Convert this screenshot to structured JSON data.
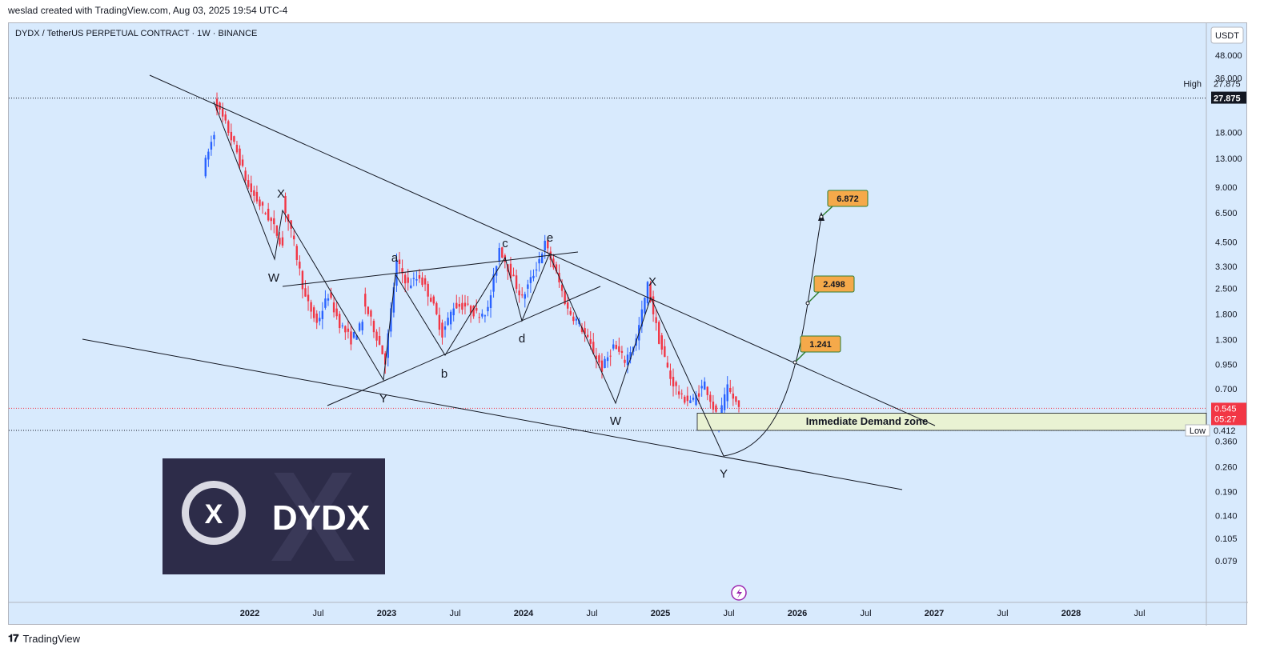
{
  "header": {
    "created_by": "weslad created with TradingView.com, Aug 03, 2025 19:54 UTC-4"
  },
  "footer": {
    "brand": "TradingView"
  },
  "chart_data": {
    "type": "candlestick",
    "title": "DYDX / TetherUS PERPETUAL CONTRACT · 1W · BINANCE",
    "currency": "USDT",
    "log_scale": true,
    "y_ticks": [
      "48.000",
      "36.000",
      "27.875",
      "18.000",
      "13.000",
      "9.000",
      "6.500",
      "4.500",
      "3.300",
      "2.500",
      "1.800",
      "1.300",
      "0.950",
      "0.700",
      "0.412",
      "0.360",
      "0.260",
      "0.190",
      "0.140",
      "0.105",
      "0.079"
    ],
    "x_ticks": [
      "2022",
      "Jul",
      "2023",
      "Jul",
      "2024",
      "Jul",
      "2025",
      "Jul",
      "2026",
      "Jul",
      "2027",
      "Jul",
      "2028",
      "Jul"
    ],
    "high": {
      "label": "High",
      "value": "27.875"
    },
    "low": {
      "label": "Low",
      "value": "0.412"
    },
    "last_price": {
      "value": "0.545",
      "countdown": "05:27"
    },
    "colors": {
      "up": "#2962ff",
      "down": "#f23645",
      "background": "#d8eafd",
      "zone": "#e9f2d3",
      "target_box": "#f5a94a",
      "target_border": "#2e7d32"
    },
    "wave_labels": [
      "X",
      "W",
      "a",
      "b",
      "c",
      "d",
      "e",
      "Y",
      "W",
      "X",
      "Y"
    ],
    "targets": [
      "6.872",
      "2.498",
      "1.241"
    ],
    "zone_label": "Immediate Demand zone",
    "logo_text": "DYDX",
    "logo_mark": "X",
    "series_path": [
      {
        "t": "2021-09",
        "v": 11.0
      },
      {
        "t": "2021-10",
        "v": 18.0
      },
      {
        "t": "2021-10",
        "v": 27.0
      },
      {
        "t": "2021-11",
        "v": 20.0
      },
      {
        "t": "2021-12",
        "v": 14.0
      },
      {
        "t": "2022-01",
        "v": 9.0
      },
      {
        "t": "2022-02",
        "v": 7.2
      },
      {
        "t": "2022-03",
        "v": 5.8
      },
      {
        "t": "2022-04",
        "v": 4.3
      },
      {
        "t": "2022-04",
        "v": 7.7
      },
      {
        "t": "2022-05",
        "v": 4.4
      },
      {
        "t": "2022-06",
        "v": 2.2
      },
      {
        "t": "2022-07",
        "v": 1.6
      },
      {
        "t": "2022-08",
        "v": 2.3
      },
      {
        "t": "2022-09",
        "v": 1.6
      },
      {
        "t": "2022-10",
        "v": 1.3
      },
      {
        "t": "2022-11",
        "v": 1.6
      },
      {
        "t": "2022-11",
        "v": 2.2
      },
      {
        "t": "2022-12",
        "v": 1.5
      },
      {
        "t": "2023-01",
        "v": 1.0
      },
      {
        "t": "2023-02",
        "v": 3.5
      },
      {
        "t": "2023-03",
        "v": 2.6
      },
      {
        "t": "2023-04",
        "v": 2.9
      },
      {
        "t": "2023-05",
        "v": 2.2
      },
      {
        "t": "2023-06",
        "v": 1.4
      },
      {
        "t": "2023-07",
        "v": 2.0
      },
      {
        "t": "2023-08",
        "v": 2.0
      },
      {
        "t": "2023-09",
        "v": 1.8
      },
      {
        "t": "2023-10",
        "v": 1.9
      },
      {
        "t": "2023-11",
        "v": 4.2
      },
      {
        "t": "2023-12",
        "v": 3.0
      },
      {
        "t": "2024-01",
        "v": 2.2
      },
      {
        "t": "2024-02",
        "v": 3.0
      },
      {
        "t": "2024-03",
        "v": 4.4
      },
      {
        "t": "2024-04",
        "v": 3.0
      },
      {
        "t": "2024-05",
        "v": 1.9
      },
      {
        "t": "2024-06",
        "v": 1.6
      },
      {
        "t": "2024-07",
        "v": 1.2
      },
      {
        "t": "2024-08",
        "v": 0.9
      },
      {
        "t": "2024-09",
        "v": 1.2
      },
      {
        "t": "2024-10",
        "v": 1.0
      },
      {
        "t": "2024-11",
        "v": 1.3
      },
      {
        "t": "2024-12",
        "v": 2.6
      },
      {
        "t": "2025-01",
        "v": 1.3
      },
      {
        "t": "2025-02",
        "v": 0.8
      },
      {
        "t": "2025-03",
        "v": 0.62
      },
      {
        "t": "2025-04",
        "v": 0.6
      },
      {
        "t": "2025-05",
        "v": 0.75
      },
      {
        "t": "2025-06",
        "v": 0.5
      },
      {
        "t": "2025-06",
        "v": 0.42
      },
      {
        "t": "2025-07",
        "v": 0.7
      },
      {
        "t": "2025-08",
        "v": 0.55
      }
    ]
  }
}
